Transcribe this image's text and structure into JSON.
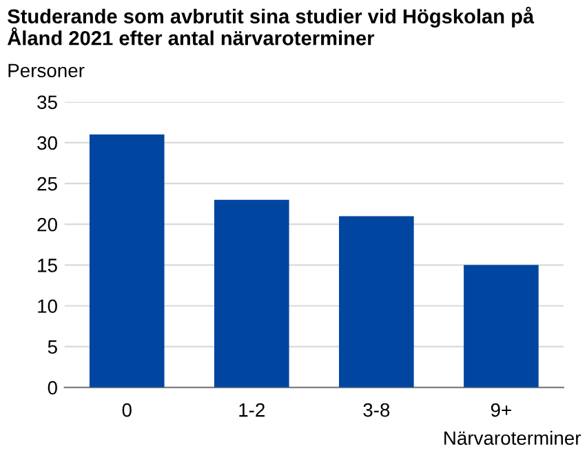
{
  "chart_data": {
    "type": "bar",
    "title": "Studerande som avbrutit sina studier vid Högskolan på Åland 2021 efter antal närvaroterminer",
    "ylabel": "Personer",
    "xlabel": "Närvaroterminer",
    "categories": [
      "0",
      "1-2",
      "3-8",
      "9+"
    ],
    "values": [
      31,
      23,
      21,
      15
    ],
    "color": "#0046a0",
    "ylim": [
      0,
      35
    ],
    "yticks": [
      0,
      5,
      10,
      15,
      20,
      25,
      30,
      35
    ],
    "grid": "y"
  }
}
